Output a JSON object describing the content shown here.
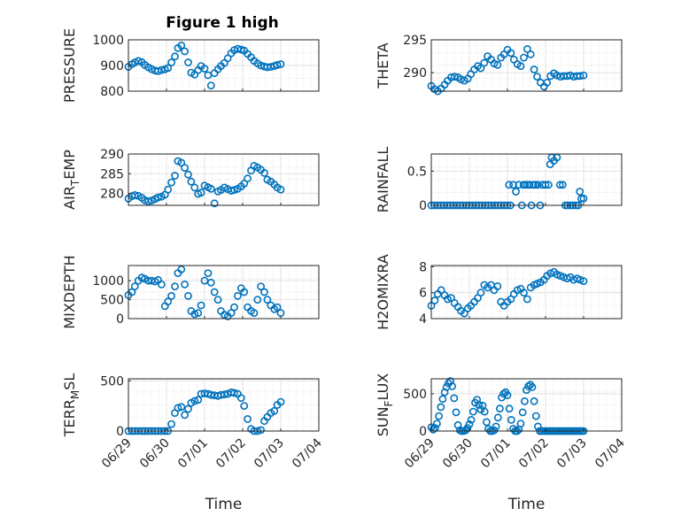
{
  "figure": {
    "title": "Figure 1 high",
    "marker_color": "#0072BD"
  },
  "chart_data": [
    {
      "type": "scatter",
      "id": "pressure",
      "ylabel": "PRESSURE",
      "yticks": [
        "800",
        "900",
        "1000"
      ],
      "ylim": [
        800,
        1000
      ],
      "xlim": [
        0,
        5
      ],
      "xticks": [
        "06/29",
        "06/30",
        "07/01",
        "07/02",
        "07/03",
        "07/04"
      ],
      "xlabel": "",
      "x": [
        0.0,
        0.09,
        0.17,
        0.26,
        0.35,
        0.43,
        0.52,
        0.61,
        0.7,
        0.78,
        0.87,
        0.96,
        1.04,
        1.13,
        1.22,
        1.3,
        1.39,
        1.48,
        1.57,
        1.65,
        1.74,
        1.83,
        1.91,
        2.0,
        2.09,
        2.17,
        2.26,
        2.35,
        2.43,
        2.52,
        2.61,
        2.7,
        2.78,
        2.87,
        2.96,
        3.04,
        3.13,
        3.22,
        3.3,
        3.39,
        3.48,
        3.57,
        3.65,
        3.74,
        3.83,
        3.91,
        4.0
      ],
      "y": [
        895,
        905,
        912,
        918,
        913,
        902,
        893,
        886,
        880,
        878,
        882,
        885,
        890,
        912,
        935,
        968,
        978,
        955,
        912,
        872,
        865,
        882,
        898,
        888,
        862,
        822,
        870,
        885,
        898,
        910,
        928,
        948,
        960,
        965,
        962,
        958,
        945,
        932,
        918,
        908,
        900,
        896,
        893,
        895,
        898,
        902,
        905
      ]
    },
    {
      "type": "scatter",
      "id": "theta",
      "ylabel": "THETA",
      "yticks": [
        "290",
        "295"
      ],
      "ylim": [
        287.2,
        295
      ],
      "xlim": [
        0,
        5
      ],
      "xticks": [
        "06/29",
        "06/30",
        "07/01",
        "07/02",
        "07/03",
        "07/04"
      ],
      "xlabel": "",
      "x": [
        0.0,
        0.09,
        0.17,
        0.26,
        0.35,
        0.43,
        0.52,
        0.61,
        0.7,
        0.78,
        0.87,
        0.96,
        1.04,
        1.13,
        1.22,
        1.3,
        1.39,
        1.48,
        1.57,
        1.65,
        1.74,
        1.83,
        1.91,
        2.0,
        2.09,
        2.17,
        2.26,
        2.35,
        2.43,
        2.52,
        2.61,
        2.7,
        2.78,
        2.87,
        2.96,
        3.04,
        3.13,
        3.22,
        3.3,
        3.39,
        3.48,
        3.57,
        3.65,
        3.74,
        3.83,
        3.91,
        4.0
      ],
      "y": [
        288.0,
        287.5,
        287.2,
        287.6,
        288.2,
        288.8,
        289.3,
        289.4,
        289.3,
        289.0,
        288.8,
        289.1,
        289.8,
        290.5,
        291.0,
        290.7,
        291.5,
        292.5,
        292.0,
        291.4,
        291.2,
        292.3,
        292.8,
        293.5,
        293.0,
        292.0,
        291.3,
        291.0,
        292.3,
        293.6,
        292.8,
        290.5,
        289.4,
        288.5,
        287.9,
        288.5,
        289.5,
        289.9,
        289.6,
        289.4,
        289.5,
        289.5,
        289.6,
        289.4,
        289.5,
        289.5,
        289.6
      ]
    },
    {
      "type": "scatter",
      "id": "air_temp",
      "ylabel": "AIR_TEMP",
      "yticks": [
        "280",
        "285",
        "290"
      ],
      "ylim": [
        277,
        290
      ],
      "xlim": [
        0,
        5
      ],
      "xticks": [
        "06/29",
        "06/30",
        "07/01",
        "07/02",
        "07/03",
        "07/04"
      ],
      "xlabel": "",
      "x": [
        0.0,
        0.09,
        0.17,
        0.26,
        0.35,
        0.43,
        0.52,
        0.61,
        0.7,
        0.78,
        0.87,
        0.96,
        1.04,
        1.13,
        1.22,
        1.3,
        1.39,
        1.48,
        1.57,
        1.65,
        1.74,
        1.83,
        1.91,
        2.0,
        2.09,
        2.17,
        2.26,
        2.35,
        2.43,
        2.52,
        2.61,
        2.7,
        2.78,
        2.87,
        2.96,
        3.04,
        3.13,
        3.22,
        3.3,
        3.39,
        3.48,
        3.57,
        3.65,
        3.74,
        3.83,
        3.91,
        4.0
      ],
      "y": [
        278.7,
        279.3,
        279.6,
        279.4,
        278.9,
        278.3,
        278.0,
        278.2,
        278.6,
        279.0,
        279.2,
        279.7,
        281.0,
        282.8,
        284.5,
        288.2,
        287.8,
        286.5,
        284.8,
        283.0,
        281.5,
        279.9,
        280.2,
        282.0,
        281.6,
        281.2,
        277.5,
        280.5,
        280.9,
        281.5,
        281.1,
        280.7,
        280.9,
        281.2,
        281.8,
        282.5,
        283.8,
        285.8,
        287.0,
        286.6,
        286.0,
        285.2,
        283.5,
        283.0,
        282.3,
        281.5,
        281.0
      ]
    },
    {
      "type": "scatter",
      "id": "rainfall",
      "ylabel": "RAINFALL",
      "yticks": [
        "0",
        "0.5"
      ],
      "ylim": [
        0,
        0.75
      ],
      "xlim": [
        0,
        5
      ],
      "xticks": [
        "06/29",
        "06/30",
        "07/01",
        "07/02",
        "07/03",
        "07/04"
      ],
      "xlabel": "",
      "x": [
        0.0,
        0.08,
        0.17,
        0.25,
        0.33,
        0.42,
        0.5,
        0.58,
        0.67,
        0.75,
        0.83,
        0.92,
        1.0,
        1.08,
        1.17,
        1.25,
        1.33,
        1.42,
        1.5,
        1.58,
        1.67,
        1.75,
        1.83,
        1.92,
        2.0,
        2.04,
        2.08,
        2.15,
        2.22,
        2.3,
        2.38,
        2.42,
        2.46,
        2.52,
        2.58,
        2.63,
        2.68,
        2.73,
        2.8,
        2.86,
        2.92,
        3.0,
        3.08,
        3.12,
        3.16,
        3.22,
        3.3,
        3.38,
        3.45,
        3.52,
        3.58,
        3.65,
        3.72,
        3.8,
        3.86,
        3.9,
        3.94,
        4.0
      ],
      "y": [
        0,
        0,
        0,
        0,
        0,
        0,
        0,
        0,
        0,
        0,
        0,
        0,
        0,
        0,
        0,
        0,
        0,
        0,
        0,
        0,
        0,
        0,
        0,
        0,
        0,
        0.3,
        0,
        0.3,
        0.2,
        0.3,
        0,
        0.3,
        0.3,
        0.3,
        0.3,
        0,
        0.3,
        0.3,
        0.3,
        0,
        0.3,
        0.3,
        0.3,
        0.6,
        0.7,
        0.65,
        0.7,
        0.3,
        0.3,
        0,
        0,
        0,
        0,
        0,
        0,
        0.2,
        0.1,
        0.1
      ]
    },
    {
      "type": "scatter",
      "id": "mixdepth",
      "ylabel": "MIXDEPTH",
      "yticks": [
        "0",
        "500",
        "1000"
      ],
      "ylim": [
        0,
        1400
      ],
      "xlim": [
        0,
        5
      ],
      "xticks": [
        "06/29",
        "06/30",
        "07/01",
        "07/02",
        "07/03",
        "07/04"
      ],
      "xlabel": "",
      "x": [
        0.0,
        0.09,
        0.17,
        0.26,
        0.35,
        0.43,
        0.52,
        0.61,
        0.7,
        0.78,
        0.87,
        0.96,
        1.04,
        1.13,
        1.22,
        1.3,
        1.39,
        1.48,
        1.57,
        1.65,
        1.74,
        1.83,
        1.91,
        2.0,
        2.09,
        2.17,
        2.26,
        2.35,
        2.43,
        2.52,
        2.61,
        2.7,
        2.78,
        2.87,
        2.96,
        3.04,
        3.13,
        3.22,
        3.3,
        3.39,
        3.48,
        3.57,
        3.65,
        3.74,
        3.83,
        3.91,
        4.0
      ],
      "y": [
        620,
        700,
        850,
        1000,
        1080,
        1050,
        1000,
        1000,
        980,
        1020,
        900,
        330,
        450,
        600,
        850,
        1200,
        1300,
        900,
        600,
        200,
        120,
        150,
        350,
        1000,
        1200,
        950,
        700,
        500,
        200,
        100,
        60,
        150,
        300,
        600,
        800,
        700,
        300,
        200,
        150,
        500,
        850,
        700,
        500,
        350,
        250,
        300,
        150
      ]
    },
    {
      "type": "scatter",
      "id": "h2omixra",
      "ylabel": "H2OMIXRA",
      "yticks": [
        "4",
        "6",
        "8"
      ],
      "ylim": [
        4,
        8.1
      ],
      "xlim": [
        0,
        5
      ],
      "xticks": [
        "06/29",
        "06/30",
        "07/01",
        "07/02",
        "07/03",
        "07/04"
      ],
      "xlabel": "",
      "x": [
        0.0,
        0.09,
        0.17,
        0.26,
        0.35,
        0.43,
        0.52,
        0.61,
        0.7,
        0.78,
        0.87,
        0.96,
        1.04,
        1.13,
        1.22,
        1.3,
        1.39,
        1.48,
        1.57,
        1.65,
        1.74,
        1.83,
        1.91,
        2.0,
        2.09,
        2.17,
        2.26,
        2.35,
        2.43,
        2.52,
        2.61,
        2.7,
        2.78,
        2.87,
        2.96,
        3.04,
        3.13,
        3.22,
        3.3,
        3.39,
        3.48,
        3.57,
        3.65,
        3.74,
        3.83,
        3.91,
        4.0
      ],
      "y": [
        5.0,
        5.4,
        5.9,
        6.2,
        5.8,
        5.5,
        5.6,
        5.2,
        4.9,
        4.6,
        4.4,
        4.8,
        5.0,
        5.3,
        5.6,
        6.0,
        6.6,
        6.4,
        6.6,
        6.2,
        6.5,
        5.3,
        5.0,
        5.3,
        5.5,
        5.9,
        6.2,
        6.3,
        6.0,
        5.5,
        6.4,
        6.6,
        6.7,
        6.8,
        7.0,
        7.3,
        7.5,
        7.6,
        7.4,
        7.3,
        7.2,
        7.1,
        7.2,
        7.0,
        7.1,
        7.0,
        6.9
      ]
    },
    {
      "type": "scatter",
      "id": "terr_msl",
      "ylabel": "TERR_MSL",
      "yticks": [
        "0",
        "500"
      ],
      "ylim": [
        0,
        520
      ],
      "xlim": [
        0,
        5
      ],
      "xticks": [
        "06/29",
        "06/30",
        "07/01",
        "07/02",
        "07/03",
        "07/04"
      ],
      "xlabel": "Time",
      "x": [
        0.0,
        0.09,
        0.17,
        0.26,
        0.35,
        0.43,
        0.52,
        0.61,
        0.7,
        0.78,
        0.87,
        0.96,
        1.04,
        1.13,
        1.22,
        1.3,
        1.39,
        1.48,
        1.57,
        1.65,
        1.74,
        1.83,
        1.91,
        2.0,
        2.09,
        2.17,
        2.26,
        2.35,
        2.43,
        2.52,
        2.61,
        2.7,
        2.78,
        2.87,
        2.96,
        3.04,
        3.13,
        3.22,
        3.3,
        3.39,
        3.48,
        3.57,
        3.65,
        3.74,
        3.83,
        3.91,
        4.0
      ],
      "y": [
        0,
        0,
        0,
        0,
        0,
        0,
        0,
        0,
        0,
        0,
        0,
        0,
        0,
        70,
        180,
        230,
        240,
        160,
        220,
        280,
        300,
        310,
        370,
        375,
        370,
        360,
        355,
        350,
        360,
        365,
        370,
        385,
        380,
        370,
        330,
        250,
        120,
        20,
        0,
        0,
        10,
        100,
        140,
        180,
        200,
        260,
        290
      ]
    },
    {
      "type": "scatter",
      "id": "sun_flux",
      "ylabel": "SUN_FLUX",
      "yticks": [
        "0",
        "500"
      ],
      "ylim": [
        0,
        700
      ],
      "xlim": [
        0,
        5
      ],
      "xticks": [
        "06/29",
        "06/30",
        "07/01",
        "07/02",
        "07/03",
        "07/04"
      ],
      "xlabel": "Time",
      "x": [
        0.0,
        0.05,
        0.1,
        0.15,
        0.2,
        0.25,
        0.3,
        0.35,
        0.4,
        0.45,
        0.5,
        0.55,
        0.6,
        0.65,
        0.7,
        0.75,
        0.8,
        0.85,
        0.9,
        0.95,
        1.0,
        1.05,
        1.1,
        1.15,
        1.2,
        1.25,
        1.3,
        1.35,
        1.4,
        1.45,
        1.5,
        1.55,
        1.6,
        1.65,
        1.7,
        1.75,
        1.8,
        1.85,
        1.9,
        1.95,
        2.0,
        2.05,
        2.1,
        2.15,
        2.2,
        2.25,
        2.3,
        2.35,
        2.4,
        2.45,
        2.5,
        2.55,
        2.6,
        2.65,
        2.7,
        2.75,
        2.8,
        2.85,
        2.9,
        2.95,
        3.0,
        3.05,
        3.1,
        3.15,
        3.2,
        3.25,
        3.3,
        3.35,
        3.4,
        3.45,
        3.5,
        3.55,
        3.6,
        3.65,
        3.7,
        3.75,
        3.8,
        3.85,
        3.9,
        3.95,
        4.0
      ],
      "y": [
        50,
        20,
        40,
        100,
        200,
        320,
        430,
        520,
        590,
        640,
        670,
        600,
        440,
        250,
        80,
        10,
        0,
        0,
        10,
        40,
        90,
        150,
        260,
        380,
        420,
        350,
        290,
        340,
        260,
        120,
        30,
        0,
        0,
        10,
        60,
        180,
        300,
        450,
        500,
        520,
        480,
        300,
        150,
        30,
        0,
        0,
        20,
        100,
        250,
        400,
        550,
        600,
        620,
        590,
        400,
        200,
        60,
        0,
        0,
        0,
        0,
        0,
        0,
        0,
        0,
        0,
        0,
        0,
        0,
        0,
        0,
        0,
        0,
        0,
        0,
        0,
        0,
        0,
        0,
        0,
        0
      ]
    }
  ]
}
